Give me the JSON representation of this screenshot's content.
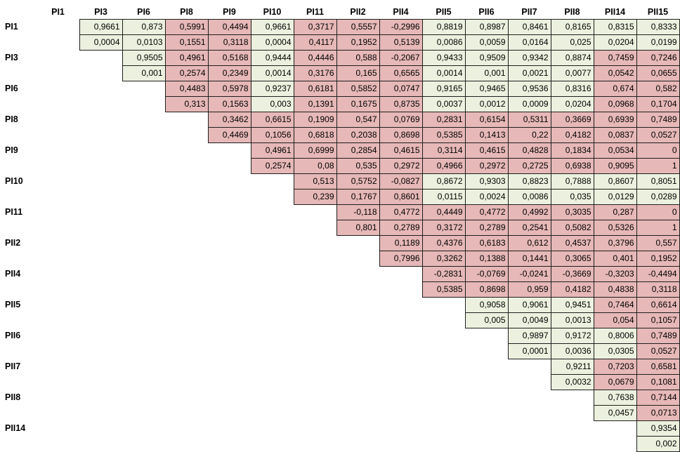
{
  "colors": {
    "significant_bg": "#ebf1de",
    "not_significant_bg": "#e6b8b7",
    "border": "#1f1f1f",
    "background": "#ffffff"
  },
  "chart_data": {
    "type": "table",
    "subtype": "upper-triangular correlation matrix, each cell shows correlation r (top) and p-value (bottom); cells with p < 0,05 shaded green, others pink; decimal comma notation",
    "columns": [
      "PI1",
      "PI3",
      "PI6",
      "PI8",
      "PI9",
      "PI10",
      "PI11",
      "PII2",
      "PII4",
      "PII5",
      "PII6",
      "PII7",
      "PII8",
      "PII14",
      "PII15"
    ],
    "rows": [
      {
        "label": "PI1",
        "cells": [
          {
            "r": "0,9661",
            "p": "0,0004"
          },
          {
            "r": "0,873",
            "p": "0,0103"
          },
          {
            "r": "0,5991",
            "p": "0,1551"
          },
          {
            "r": "0,4494",
            "p": "0,3118"
          },
          {
            "r": "0,9661",
            "p": "0,0004"
          },
          {
            "r": "0,3717",
            "p": "0,4117"
          },
          {
            "r": "0,5557",
            "p": "0,1952"
          },
          {
            "r": "-0,2996",
            "p": "0,5139"
          },
          {
            "r": "0,8819",
            "p": "0,0086"
          },
          {
            "r": "0,8987",
            "p": "0,0059"
          },
          {
            "r": "0,8461",
            "p": "0,0164"
          },
          {
            "r": "0,8165",
            "p": "0,025"
          },
          {
            "r": "0,8315",
            "p": "0,0204"
          },
          {
            "r": "0,8333",
            "p": "0,0199"
          }
        ]
      },
      {
        "label": "PI3",
        "cells": [
          {
            "r": "0,9505",
            "p": "0,001"
          },
          {
            "r": "0,4961",
            "p": "0,2574"
          },
          {
            "r": "0,5168",
            "p": "0,2349"
          },
          {
            "r": "0,9444",
            "p": "0,0014"
          },
          {
            "r": "0,4446",
            "p": "0,3176"
          },
          {
            "r": "0,588",
            "p": "0,165"
          },
          {
            "r": "-0,2067",
            "p": "0,6565"
          },
          {
            "r": "0,9433",
            "p": "0,0014"
          },
          {
            "r": "0,9509",
            "p": "0,001"
          },
          {
            "r": "0,9342",
            "p": "0,0021"
          },
          {
            "r": "0,8874",
            "p": "0,0077"
          },
          {
            "r": "0,7459",
            "p": "0,0542"
          },
          {
            "r": "0,7246",
            "p": "0,0655"
          }
        ]
      },
      {
        "label": "PI6",
        "cells": [
          {
            "r": "0,4483",
            "p": "0,313"
          },
          {
            "r": "0,5978",
            "p": "0,1563"
          },
          {
            "r": "0,9237",
            "p": "0,003"
          },
          {
            "r": "0,6181",
            "p": "0,1391"
          },
          {
            "r": "0,5852",
            "p": "0,1675"
          },
          {
            "r": "0,0747",
            "p": "0,8735"
          },
          {
            "r": "0,9165",
            "p": "0,0037"
          },
          {
            "r": "0,9465",
            "p": "0,0012"
          },
          {
            "r": "0,9536",
            "p": "0,0009"
          },
          {
            "r": "0,8316",
            "p": "0,0204"
          },
          {
            "r": "0,674",
            "p": "0,0968"
          },
          {
            "r": "0,582",
            "p": "0,1704"
          }
        ]
      },
      {
        "label": "PI8",
        "cells": [
          {
            "r": "0,3462",
            "p": "0,4469"
          },
          {
            "r": "0,6615",
            "p": "0,1056"
          },
          {
            "r": "0,1909",
            "p": "0,6818"
          },
          {
            "r": "0,547",
            "p": "0,2038"
          },
          {
            "r": "0,0769",
            "p": "0,8698"
          },
          {
            "r": "0,2831",
            "p": "0,5385"
          },
          {
            "r": "0,6154",
            "p": "0,1413"
          },
          {
            "r": "0,5311",
            "p": "0,22"
          },
          {
            "r": "0,3669",
            "p": "0,4182"
          },
          {
            "r": "0,6939",
            "p": "0,0837"
          },
          {
            "r": "0,7489",
            "p": "0,0527"
          }
        ]
      },
      {
        "label": "PI9",
        "cells": [
          {
            "r": "0,4961",
            "p": "0,2574"
          },
          {
            "r": "0,6999",
            "p": "0,08"
          },
          {
            "r": "0,2854",
            "p": "0,535"
          },
          {
            "r": "0,4615",
            "p": "0,2972"
          },
          {
            "r": "0,3114",
            "p": "0,4966"
          },
          {
            "r": "0,4615",
            "p": "0,2972"
          },
          {
            "r": "0,4828",
            "p": "0,2725"
          },
          {
            "r": "0,1834",
            "p": "0,6938"
          },
          {
            "r": "0,0534",
            "p": "0,9095"
          },
          {
            "r": "0",
            "p": "1"
          }
        ]
      },
      {
        "label": "PI10",
        "cells": [
          {
            "r": "0,513",
            "p": "0,239"
          },
          {
            "r": "0,5752",
            "p": "0,1767"
          },
          {
            "r": "-0,0827",
            "p": "0,8601"
          },
          {
            "r": "0,8672",
            "p": "0,0115"
          },
          {
            "r": "0,9303",
            "p": "0,0024"
          },
          {
            "r": "0,8823",
            "p": "0,0086"
          },
          {
            "r": "0,7888",
            "p": "0,035"
          },
          {
            "r": "0,8607",
            "p": "0,0129"
          },
          {
            "r": "0,8051",
            "p": "0,0289"
          }
        ]
      },
      {
        "label": "PI11",
        "cells": [
          {
            "r": "-0,118",
            "p": "0,801"
          },
          {
            "r": "0,4772",
            "p": "0,2789"
          },
          {
            "r": "0,4449",
            "p": "0,3172"
          },
          {
            "r": "0,4772",
            "p": "0,2789"
          },
          {
            "r": "0,4992",
            "p": "0,2541"
          },
          {
            "r": "0,3035",
            "p": "0,5082"
          },
          {
            "r": "0,287",
            "p": "0,5326"
          },
          {
            "r": "0",
            "p": "1"
          }
        ]
      },
      {
        "label": "PII2",
        "cells": [
          {
            "r": "0,1189",
            "p": "0,7996"
          },
          {
            "r": "0,4376",
            "p": "0,3262"
          },
          {
            "r": "0,6183",
            "p": "0,1388"
          },
          {
            "r": "0,612",
            "p": "0,1441"
          },
          {
            "r": "0,4537",
            "p": "0,3065"
          },
          {
            "r": "0,3796",
            "p": "0,401"
          },
          {
            "r": "0,557",
            "p": "0,1952"
          }
        ]
      },
      {
        "label": "PII4",
        "cells": [
          {
            "r": "-0,2831",
            "p": "0,5385"
          },
          {
            "r": "-0,0769",
            "p": "0,8698"
          },
          {
            "r": "-0,0241",
            "p": "0,959"
          },
          {
            "r": "-0,3669",
            "p": "0,4182"
          },
          {
            "r": "-0,3203",
            "p": "0,4838"
          },
          {
            "r": "-0,4494",
            "p": "0,3118"
          }
        ]
      },
      {
        "label": "PII5",
        "cells": [
          {
            "r": "0,9058",
            "p": "0,005"
          },
          {
            "r": "0,9061",
            "p": "0,0049"
          },
          {
            "r": "0,9451",
            "p": "0,0013"
          },
          {
            "r": "0,7464",
            "p": "0,054"
          },
          {
            "r": "0,6614",
            "p": "0,1057"
          }
        ]
      },
      {
        "label": "PII6",
        "cells": [
          {
            "r": "0,9897",
            "p": "0,0001"
          },
          {
            "r": "0,9172",
            "p": "0,0036"
          },
          {
            "r": "0,8006",
            "p": "0,0305"
          },
          {
            "r": "0,7489",
            "p": "0,0527"
          }
        ]
      },
      {
        "label": "PII7",
        "cells": [
          {
            "r": "0,9211",
            "p": "0,0032"
          },
          {
            "r": "0,7203",
            "p": "0,0679"
          },
          {
            "r": "0,6581",
            "p": "0,1081"
          }
        ]
      },
      {
        "label": "PII8",
        "cells": [
          {
            "r": "0,7638",
            "p": "0,0457"
          },
          {
            "r": "0,7144",
            "p": "0,0713"
          }
        ]
      },
      {
        "label": "PII14",
        "cells": [
          {
            "r": "0,9354",
            "p": "0,002"
          }
        ]
      }
    ]
  }
}
